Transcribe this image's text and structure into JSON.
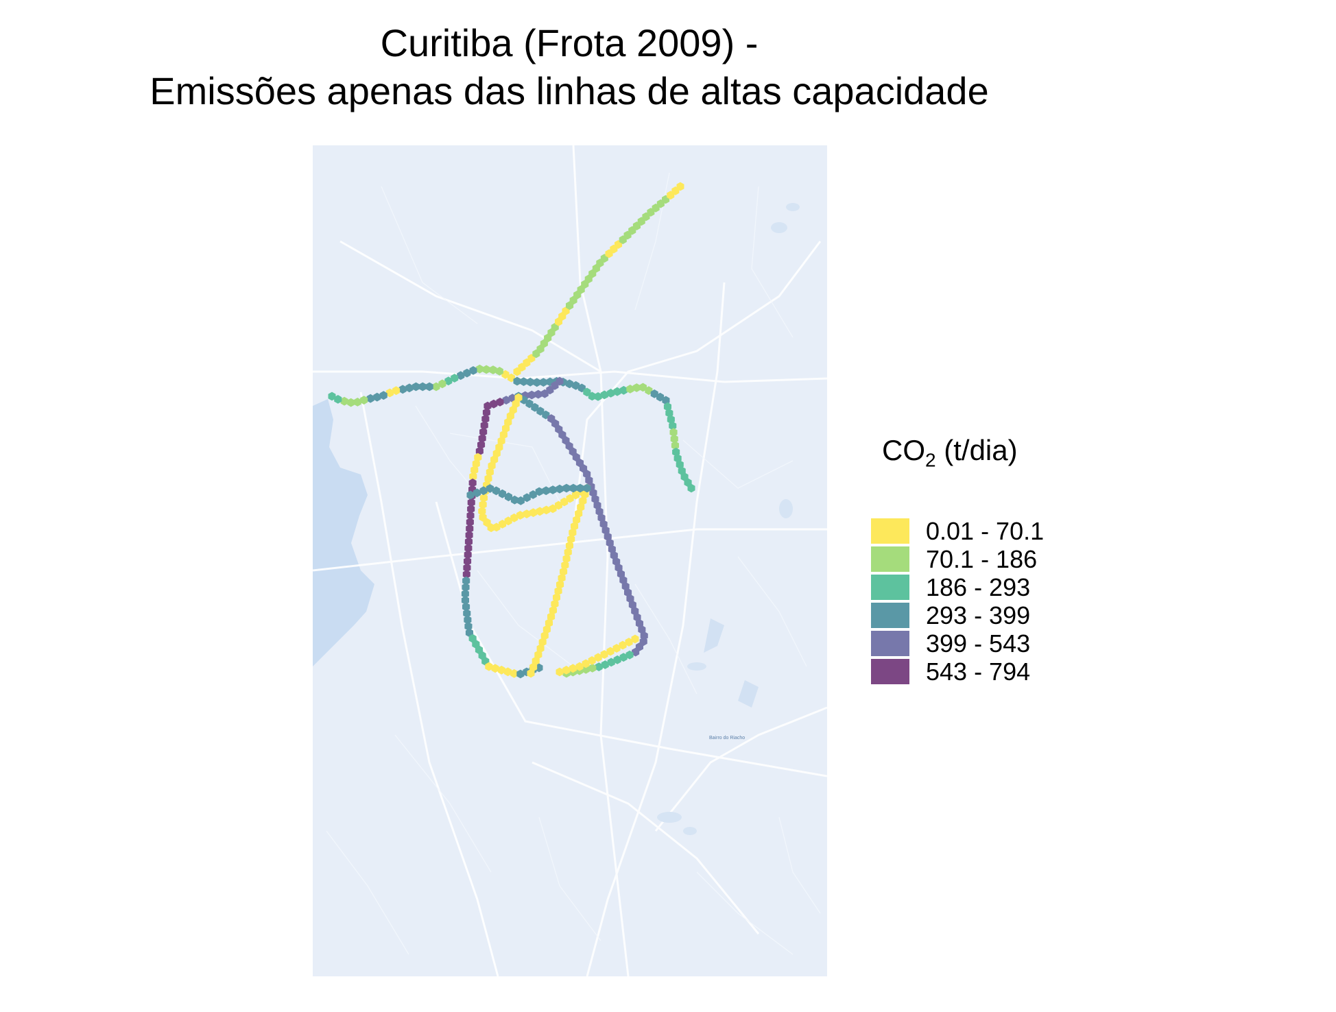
{
  "title": {
    "line1": "Curitiba (Frota 2009) -",
    "line2": "Emissões apenas das linhas de altas capacidade"
  },
  "legend": {
    "title_main": "CO",
    "title_sub": "2",
    "title_rest": " (t/dia)",
    "items": [
      {
        "label": "0.01 - 70.1",
        "color": "#fde85b"
      },
      {
        "label": "70.1 - 186",
        "color": "#a5dc7c"
      },
      {
        "label": "186 - 293",
        "color": "#5dc29e"
      },
      {
        "label": "293 - 399",
        "color": "#5a98a6"
      },
      {
        "label": "399 - 543",
        "color": "#7778ab"
      },
      {
        "label": "543 - 794",
        "color": "#7c4784"
      }
    ]
  },
  "map": {
    "basemap": "light-blue street map",
    "label_text": "Bairro do Riacho",
    "corridors": [
      {
        "name": "north",
        "class_sequence": [
          0,
          1,
          1,
          0,
          1,
          1,
          1,
          0,
          1,
          1,
          1,
          0
        ]
      },
      {
        "name": "west",
        "class_sequence": [
          0,
          1,
          1,
          3,
          2,
          1,
          3,
          3,
          0,
          3,
          1,
          1,
          2
        ]
      },
      {
        "name": "east",
        "class_sequence": [
          3,
          3,
          3,
          2,
          2,
          1,
          3,
          2,
          1,
          2,
          2
        ]
      },
      {
        "name": "south-west loop",
        "class_sequence": [
          4,
          4,
          5,
          5,
          0,
          5,
          5,
          5,
          3,
          3,
          2,
          0,
          3
        ]
      },
      {
        "name": "south-east loop",
        "class_sequence": [
          3,
          4,
          4,
          4,
          4,
          4,
          4,
          4,
          2,
          1
        ]
      },
      {
        "name": "inner yellow",
        "class_sequence": [
          0,
          0,
          0,
          0,
          0,
          0,
          0,
          0,
          0,
          0
        ]
      }
    ]
  }
}
